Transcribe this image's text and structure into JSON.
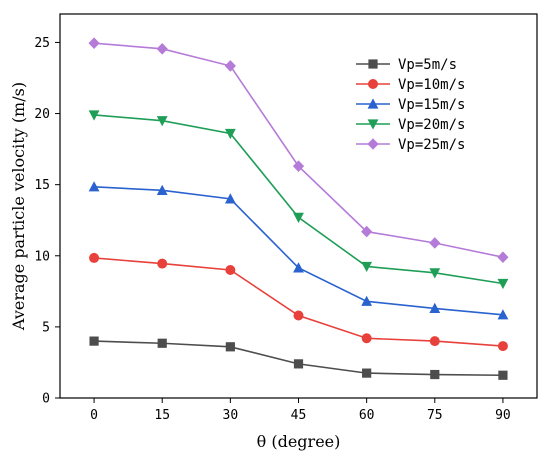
{
  "chart_data": {
    "type": "line",
    "xlabel": "θ (degree)",
    "ylabel": "Average particle velocity (m/s)",
    "x": [
      0,
      15,
      30,
      45,
      60,
      75,
      90
    ],
    "xlim": [
      -7.5,
      97.5
    ],
    "ylim": [
      0,
      27
    ],
    "xticks": [
      0,
      15,
      30,
      45,
      60,
      75,
      90
    ],
    "yticks": [
      0,
      5,
      10,
      15,
      20,
      25
    ],
    "grid": false,
    "legend_position": "top-right",
    "series": [
      {
        "name": "Vp=5m/s",
        "color": "#4d4d4d",
        "marker": "square",
        "values": [
          4.0,
          3.85,
          3.6,
          2.4,
          1.75,
          1.65,
          1.6
        ]
      },
      {
        "name": "Vp=10m/s",
        "color": "#e8403a",
        "marker": "circle",
        "values": [
          9.85,
          9.45,
          9.0,
          5.8,
          4.2,
          4.0,
          3.65
        ]
      },
      {
        "name": "Vp=15m/s",
        "color": "#2a62cf",
        "marker": "triangle-up",
        "values": [
          14.85,
          14.6,
          14.0,
          9.15,
          6.8,
          6.3,
          5.85
        ]
      },
      {
        "name": "Vp=20m/s",
        "color": "#1f9e57",
        "marker": "triangle-down",
        "values": [
          19.9,
          19.5,
          18.6,
          12.7,
          9.25,
          8.8,
          8.05
        ]
      },
      {
        "name": "Vp=25m/s",
        "color": "#b57bd8",
        "marker": "diamond",
        "values": [
          24.95,
          24.55,
          23.35,
          16.3,
          11.7,
          10.9,
          9.9
        ]
      }
    ]
  }
}
